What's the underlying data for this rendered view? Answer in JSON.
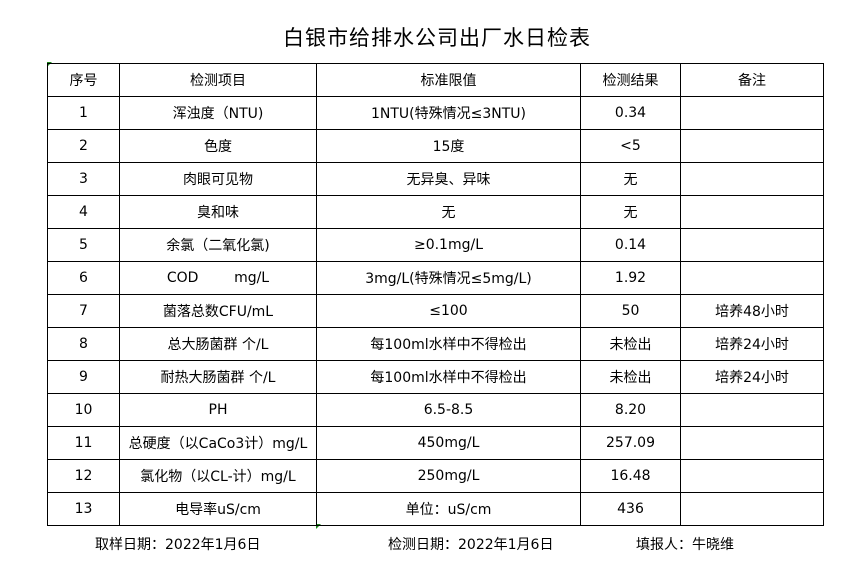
{
  "title": "白银市给排水公司出厂水日检表",
  "headers": [
    "序号",
    "检测项目",
    "标准限值",
    "检测结果",
    "备注"
  ],
  "rows": [
    [
      "1",
      "浑浊度（NTU)",
      "1NTU(特殊情况≤3NTU)",
      "0.34",
      ""
    ],
    [
      "2",
      "色度",
      "15度",
      "<5",
      ""
    ],
    [
      "3",
      "肉眼可见物",
      "无异臭、异味",
      "无",
      ""
    ],
    [
      "4",
      "臭和味",
      "无",
      "无",
      ""
    ],
    [
      "5",
      "余氯（二氧化氯)",
      "≥0.1mg/L",
      "0.14",
      ""
    ],
    [
      "6",
      "COD        mg/L",
      "3mg/L(特殊情况≤5mg/L)",
      "1.92",
      ""
    ],
    [
      "7",
      "菌落总数CFU/mL",
      "≤100",
      "50",
      "培养48小时"
    ],
    [
      "8",
      "总大肠菌群 个/L",
      "每100ml水样中不得检出",
      "未检出",
      "培养24小时"
    ],
    [
      "9",
      "耐热大肠菌群 个/L",
      "每100ml水样中不得检出",
      "未检出",
      "培养24小时"
    ],
    [
      "10",
      "PH",
      "6.5-8.5",
      "8.20",
      ""
    ],
    [
      "11",
      "总硬度（以CaCo3计）mg/L",
      "450mg/L",
      "257.09",
      ""
    ],
    [
      "12",
      "氯化物（以CL-计）mg/L",
      "250mg/L",
      "16.48",
      ""
    ],
    [
      "13",
      "电导率uS/cm",
      "单位：uS/cm",
      "436",
      ""
    ]
  ],
  "footer": {
    "sample_date": "取样日期：2022年1月6日",
    "test_date": "检测日期：2022年1月6日",
    "reporter": "填报人：牛晓维"
  }
}
